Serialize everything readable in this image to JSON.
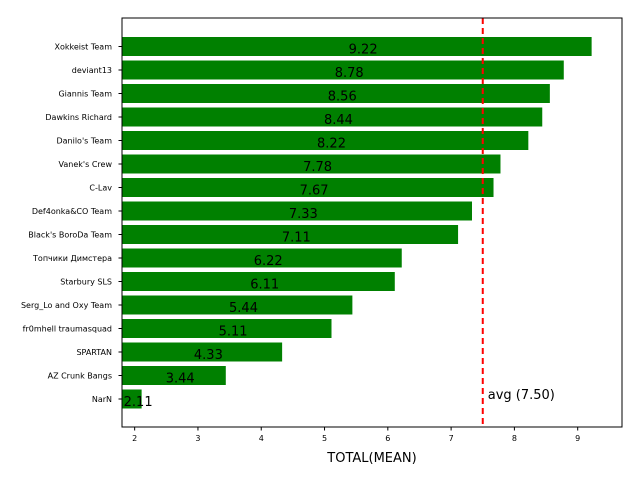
{
  "chart_data": {
    "type": "bar",
    "orientation": "horizontal",
    "categories": [
      "Xokkeist Team",
      "deviant13",
      "Giannis Team",
      "Dawkins Richard",
      "Danilo's Team",
      "Vanek's Crew",
      "C-Lav",
      "Def4onka&CO Team",
      "Black's BoroDa Team",
      "Топчики Димстера",
      "Starbury SLS",
      "Serg_Lo and Oxy Team",
      "fr0mhell traumasquad",
      "SPARTAN",
      "AZ Crunk Bangs",
      "NarN"
    ],
    "values": [
      9.22,
      8.78,
      8.56,
      8.44,
      8.22,
      7.78,
      7.67,
      7.33,
      7.11,
      6.22,
      6.11,
      5.44,
      5.11,
      4.33,
      3.44,
      2.11
    ],
    "value_labels": [
      "9.22",
      "8.78",
      "8.56",
      "8.44",
      "8.22",
      "7.78",
      "7.67",
      "7.33",
      "7.11",
      "6.22",
      "6.11",
      "5.44",
      "5.11",
      "4.33",
      "3.44",
      "2.11"
    ],
    "title": "",
    "xlabel": "TOTAL(MEAN)",
    "ylabel": "",
    "xlim": [
      1.8,
      9.7
    ],
    "xticks": [
      2,
      3,
      4,
      5,
      6,
      7,
      8,
      9
    ],
    "bar_color": "#008000",
    "reference_line": {
      "value": 7.5,
      "label": "avg (7.50)",
      "color": "#ff0000",
      "style": "dashed"
    },
    "grid": false,
    "legend": "none"
  }
}
